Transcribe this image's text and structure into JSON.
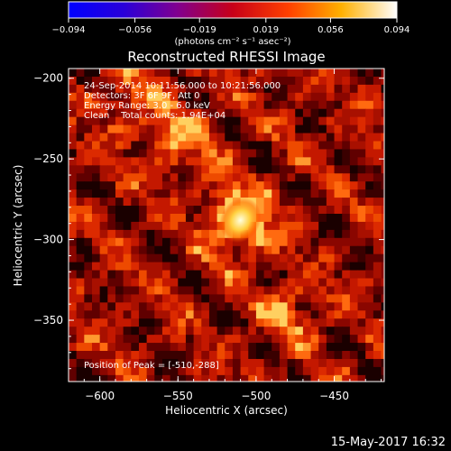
{
  "chart_data": {
    "type": "heatmap",
    "title": "Reconstructed RHESSI Image",
    "xlabel": "Heliocentric X (arcsec)",
    "ylabel": "Heliocentric Y (arcsec)",
    "xlim": [
      -620,
      -418
    ],
    "ylim": [
      -388,
      -194
    ],
    "x_ticks": [
      -600,
      -550,
      -500,
      -450
    ],
    "y_ticks": [
      -200,
      -250,
      -300,
      -350
    ],
    "x_tick_labels": [
      "−600",
      "−550",
      "−500",
      "−450"
    ],
    "y_tick_labels": [
      "−200",
      "−250",
      "−300",
      "−350"
    ],
    "colorbar": {
      "range": [
        -0.094,
        0.094
      ],
      "ticks": [
        -0.094,
        -0.056,
        -0.019,
        0.019,
        0.056,
        0.094
      ],
      "tick_labels": [
        "−0.094",
        "−0.056",
        "−0.019",
        "0.019",
        "0.056",
        "0.094"
      ],
      "unit_label": "(photons cm⁻² s⁻¹ asec⁻²)",
      "colors": [
        "#0000ff",
        "#4000c0",
        "#800080",
        "#cc0000",
        "#ff3300",
        "#ffaa00",
        "#ffffff"
      ]
    },
    "annotations": [
      "24-Sep-2014 10:11:56.000 to 10:21:56.000",
      "Detectors: 3F 6F 9F, Att 0",
      "Energy Range: 3.0 - 6.0 keV",
      "Clean    Total counts: 1.94E+04"
    ],
    "peak_label": "Position of Peak = [-510,-288]",
    "peak": {
      "x": -510,
      "y": -288,
      "value": 0.094
    },
    "sources": [
      {
        "x": -510,
        "y": -288,
        "value": 0.094
      },
      {
        "x": -545,
        "y": -240,
        "value": 0.05
      },
      {
        "x": -480,
        "y": -345,
        "value": 0.045
      },
      {
        "x": -580,
        "y": -215,
        "value": 0.04
      }
    ],
    "grid": false,
    "legend": "none"
  },
  "footer": {
    "date": "15-May-2017 16:32"
  }
}
